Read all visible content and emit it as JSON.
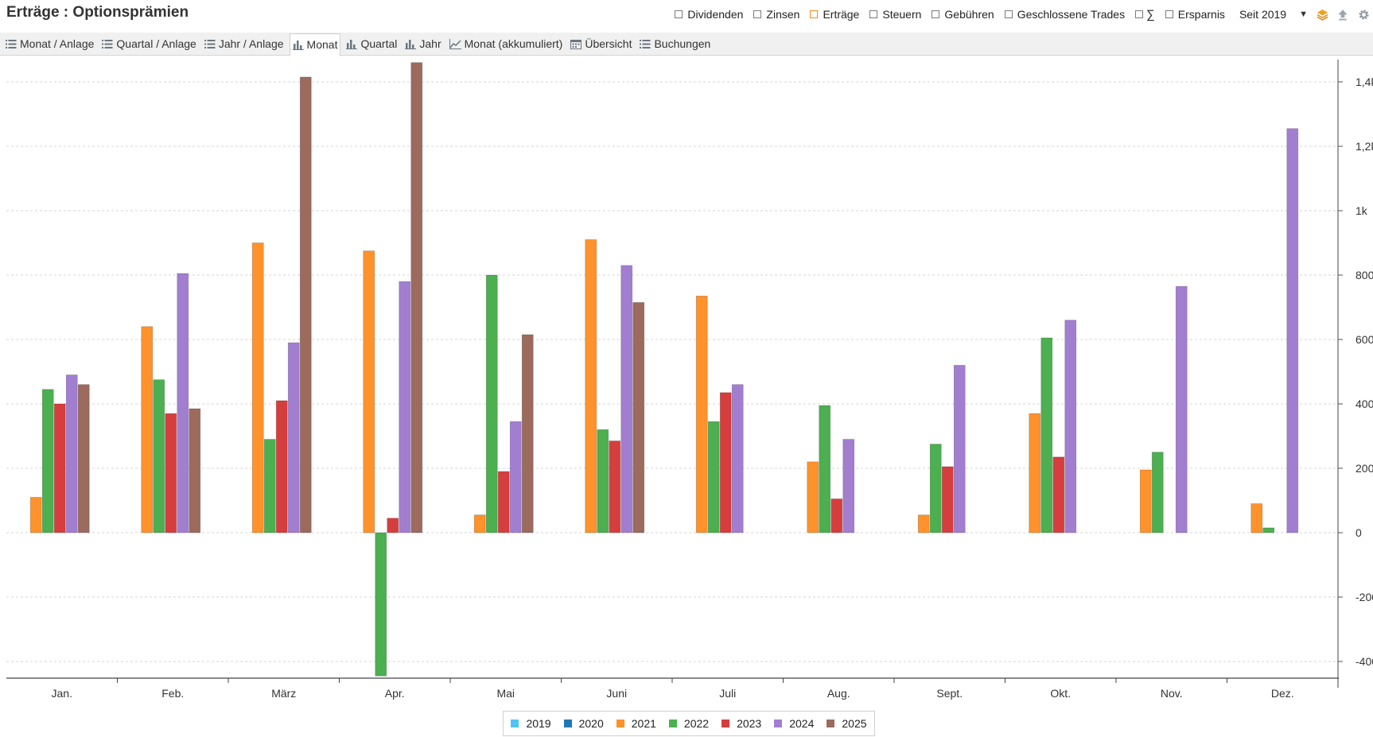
{
  "header": {
    "title": "Erträge : Optionsprämien",
    "filters": [
      {
        "label": "Dividenden",
        "checked": false
      },
      {
        "label": "Zinsen",
        "checked": false
      },
      {
        "label": "Erträge",
        "checked": true
      },
      {
        "label": "Steuern",
        "checked": false
      },
      {
        "label": "Gebühren",
        "checked": false
      },
      {
        "label": "Geschlossene Trades",
        "checked": false
      },
      {
        "label": "∑",
        "checked": false
      },
      {
        "label": "Ersparnis",
        "checked": false
      }
    ],
    "period": "Seit 2019",
    "icons": [
      "layers-icon",
      "upload-icon",
      "gear-icon"
    ],
    "accent": "#f28c1c"
  },
  "tabs": [
    {
      "label": "Monat / Anlage",
      "icon": "list-icon",
      "active": false
    },
    {
      "label": "Quartal / Anlage",
      "icon": "list-icon",
      "active": false
    },
    {
      "label": "Jahr / Anlage",
      "icon": "list-icon",
      "active": false
    },
    {
      "label": "Monat",
      "icon": "bar-chart-icon",
      "active": true
    },
    {
      "label": "Quartal",
      "icon": "bar-chart-icon",
      "active": false
    },
    {
      "label": "Jahr",
      "icon": "bar-chart-icon",
      "active": false
    },
    {
      "label": "Monat (akkumuliert)",
      "icon": "line-chart-icon",
      "active": false
    },
    {
      "label": "Übersicht",
      "icon": "calendar-icon",
      "active": false
    },
    {
      "label": "Buchungen",
      "icon": "list-icon",
      "active": false
    }
  ],
  "chart_data": {
    "type": "bar",
    "categories": [
      "Jan.",
      "Feb.",
      "März",
      "Apr.",
      "Mai",
      "Juni",
      "Juli",
      "Aug.",
      "Sept.",
      "Okt.",
      "Nov.",
      "Dez."
    ],
    "ylim": [
      -450,
      1470
    ],
    "yticks": [
      -400,
      -200,
      0,
      200,
      400,
      600,
      800,
      1000,
      1200,
      1400
    ],
    "ytick_labels": [
      "-400",
      "-200",
      "0",
      "200",
      "400",
      "600",
      "800",
      "1k",
      "1,2k",
      "1,4k"
    ],
    "grid": true,
    "legend_position": "bottom",
    "series": [
      {
        "name": "2019",
        "color": "#4fc3f7",
        "values": [
          0,
          0,
          0,
          0,
          0,
          0,
          0,
          0,
          0,
          0,
          0,
          0
        ]
      },
      {
        "name": "2020",
        "color": "#1f77b4",
        "values": [
          0,
          0,
          0,
          0,
          0,
          0,
          0,
          0,
          0,
          0,
          0,
          0
        ]
      },
      {
        "name": "2021",
        "color": "#ff922b",
        "values": [
          110,
          640,
          900,
          875,
          55,
          910,
          735,
          220,
          55,
          370,
          195,
          90
        ]
      },
      {
        "name": "2022",
        "color": "#4caf50",
        "values": [
          445,
          475,
          290,
          -445,
          800,
          320,
          345,
          395,
          275,
          605,
          250,
          15
        ]
      },
      {
        "name": "2023",
        "color": "#d63e3e",
        "values": [
          400,
          370,
          410,
          45,
          190,
          285,
          435,
          105,
          205,
          235,
          0,
          0
        ]
      },
      {
        "name": "2024",
        "color": "#a27ed1",
        "values": [
          490,
          805,
          590,
          780,
          345,
          830,
          460,
          290,
          520,
          660,
          765,
          1255
        ]
      },
      {
        "name": "2025",
        "color": "#9c6b5e",
        "values": [
          460,
          385,
          1415,
          1460,
          615,
          715,
          0,
          0,
          0,
          0,
          0,
          0
        ]
      }
    ]
  }
}
